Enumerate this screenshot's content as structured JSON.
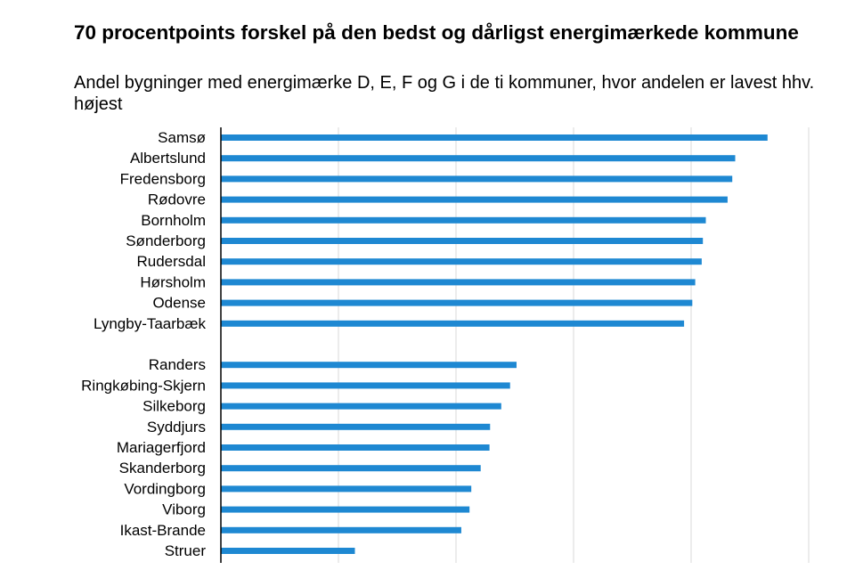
{
  "chart_data": {
    "type": "bar",
    "orientation": "horizontal",
    "title": "70 procentpoints forskel på den bedst og dårligst energimærkede kommune",
    "subtitle": "Andel bygninger med energimærke D, E, F og G i de ti kommuner, hvor andelen er lavest hhv. højest",
    "xlabel": "",
    "ylabel": "",
    "xlim": [
      0,
      100
    ],
    "grid": true,
    "legend": "none",
    "bar_color": "#1E88D2",
    "categories": [
      "Samsø",
      "Albertslund",
      "Fredensborg",
      "Rødovre",
      "Bornholm",
      "Sønderborg",
      "Rudersdal",
      "Hørsholm",
      "Odense",
      "Lyngby-Taarbæk",
      "",
      "Randers",
      "Ringkøbing-Skjern",
      "Silkeborg",
      "Syddjurs",
      "Mariagerfjord",
      "Skanderborg",
      "Vordingborg",
      "Viborg",
      "Ikast-Brande",
      "Struer"
    ],
    "values": [
      93,
      87.5,
      87,
      86.2,
      82.5,
      82,
      81.8,
      80.7,
      80.2,
      78.8,
      null,
      50.3,
      49.2,
      47.7,
      45.8,
      45.7,
      44.2,
      42.6,
      42.3,
      40.9,
      22.8
    ]
  }
}
